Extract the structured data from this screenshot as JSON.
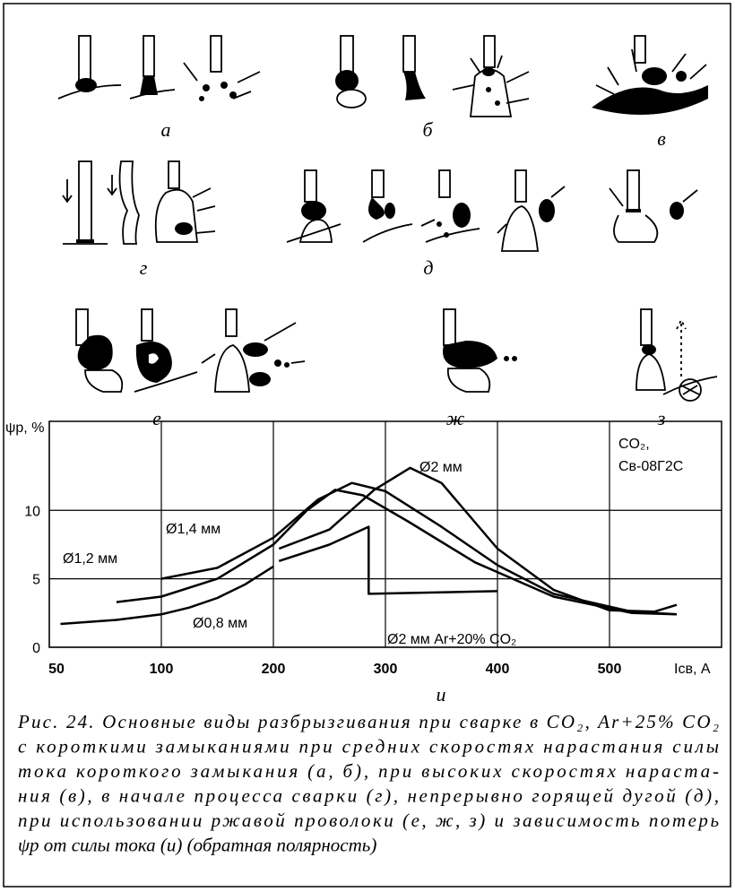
{
  "figure": {
    "panel_labels": [
      "а",
      "б",
      "в",
      "г",
      "д",
      "е",
      "ж",
      "з"
    ],
    "caption_lines": [
      "Рис. 24. Основные виды разбрызгивания при сварке в CO₂, Ar+25% CO₂",
      "с короткими замыканиями при средних скоростях нарастания силы",
      "тока короткого замыкания (а, б), при высоких скоростях нараста-",
      "ния (в), в начале процесса сварки (г), непрерывно горящей дугой (д),",
      "при использовании ржавой проволоки (е, ж, з) и зависимость потерь",
      "ψр от силы тока (и) (обратная полярность)"
    ]
  },
  "chart_data": {
    "type": "line",
    "panel_label": "и",
    "xlabel": "Iсв, А",
    "ylabel": "ψр, %",
    "annotation": [
      "CO₂,",
      "Св-08Г2С"
    ],
    "xlim": [
      50,
      600
    ],
    "xticks": [
      50,
      100,
      200,
      300,
      400,
      500
    ],
    "ylim": [
      0,
      16.5
    ],
    "yticks": [
      0,
      5,
      10
    ],
    "grid": true,
    "series": [
      {
        "name": "Ø0,8 мм",
        "color": "#000000",
        "x": [
          55,
          80,
          100,
          125,
          150,
          175,
          200
        ],
        "values": [
          1.7,
          2.0,
          2.4,
          2.9,
          3.6,
          4.6,
          5.9
        ]
      },
      {
        "name": "Ø1,2 мм",
        "color": "#000000",
        "x": [
          80,
          100,
          150,
          200,
          230,
          255,
          280,
          320,
          380,
          450,
          520,
          560
        ],
        "values": [
          3.3,
          3.7,
          5.0,
          7.5,
          10.0,
          11.5,
          11.1,
          9.2,
          6.2,
          3.7,
          2.5,
          2.4
        ]
      },
      {
        "name": "Ø1,4 мм",
        "color": "#000000",
        "x": [
          100,
          150,
          200,
          240,
          270,
          300,
          350,
          400,
          450,
          520,
          560
        ],
        "values": [
          5.0,
          5.8,
          8.0,
          10.8,
          12.0,
          11.4,
          8.8,
          6.0,
          3.9,
          2.6,
          2.4
        ]
      },
      {
        "name": "Ø2 мм",
        "color": "#000000",
        "x": [
          205,
          250,
          290,
          322,
          350,
          400,
          450,
          500,
          540,
          560
        ],
        "values": [
          7.2,
          8.6,
          11.5,
          13.1,
          12.0,
          7.2,
          4.2,
          2.7,
          2.6,
          3.1
        ]
      },
      {
        "name": "Ø2 мм Ar+20% CO₂",
        "color": "#000000",
        "x": [
          205,
          250,
          285,
          285,
          400
        ],
        "values": [
          6.3,
          7.5,
          8.8,
          3.9,
          4.1
        ]
      }
    ]
  }
}
